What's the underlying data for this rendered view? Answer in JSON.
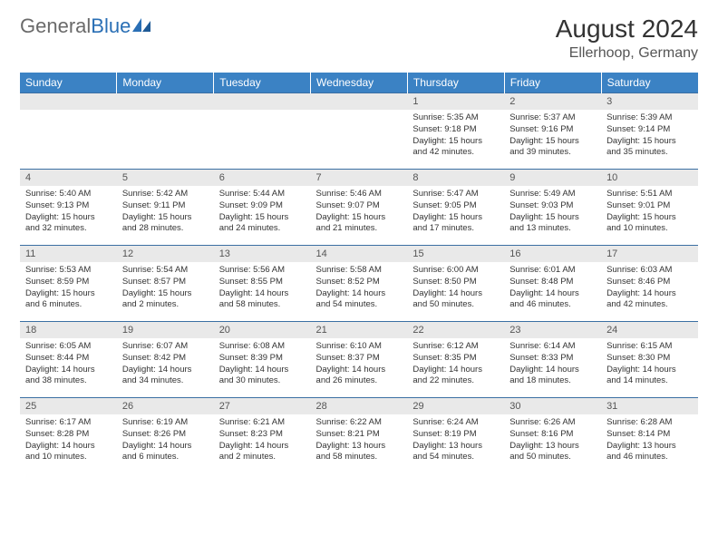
{
  "brand": {
    "part1": "General",
    "part2": "Blue"
  },
  "title": "August 2024",
  "location": "Ellerhoop, Germany",
  "colors": {
    "header_bg": "#3b82c4",
    "header_text": "#ffffff",
    "row_divider": "#3b6fa3",
    "daynum_bg": "#e9e9e9",
    "text": "#333333",
    "brand_gray": "#6a6a6a",
    "brand_blue": "#2a6fb5"
  },
  "weekdays": [
    "Sunday",
    "Monday",
    "Tuesday",
    "Wednesday",
    "Thursday",
    "Friday",
    "Saturday"
  ],
  "weeks": [
    [
      null,
      null,
      null,
      null,
      {
        "n": "1",
        "sr": "5:35 AM",
        "ss": "9:18 PM",
        "dl": "15 hours and 42 minutes."
      },
      {
        "n": "2",
        "sr": "5:37 AM",
        "ss": "9:16 PM",
        "dl": "15 hours and 39 minutes."
      },
      {
        "n": "3",
        "sr": "5:39 AM",
        "ss": "9:14 PM",
        "dl": "15 hours and 35 minutes."
      }
    ],
    [
      {
        "n": "4",
        "sr": "5:40 AM",
        "ss": "9:13 PM",
        "dl": "15 hours and 32 minutes."
      },
      {
        "n": "5",
        "sr": "5:42 AM",
        "ss": "9:11 PM",
        "dl": "15 hours and 28 minutes."
      },
      {
        "n": "6",
        "sr": "5:44 AM",
        "ss": "9:09 PM",
        "dl": "15 hours and 24 minutes."
      },
      {
        "n": "7",
        "sr": "5:46 AM",
        "ss": "9:07 PM",
        "dl": "15 hours and 21 minutes."
      },
      {
        "n": "8",
        "sr": "5:47 AM",
        "ss": "9:05 PM",
        "dl": "15 hours and 17 minutes."
      },
      {
        "n": "9",
        "sr": "5:49 AM",
        "ss": "9:03 PM",
        "dl": "15 hours and 13 minutes."
      },
      {
        "n": "10",
        "sr": "5:51 AM",
        "ss": "9:01 PM",
        "dl": "15 hours and 10 minutes."
      }
    ],
    [
      {
        "n": "11",
        "sr": "5:53 AM",
        "ss": "8:59 PM",
        "dl": "15 hours and 6 minutes."
      },
      {
        "n": "12",
        "sr": "5:54 AM",
        "ss": "8:57 PM",
        "dl": "15 hours and 2 minutes."
      },
      {
        "n": "13",
        "sr": "5:56 AM",
        "ss": "8:55 PM",
        "dl": "14 hours and 58 minutes."
      },
      {
        "n": "14",
        "sr": "5:58 AM",
        "ss": "8:52 PM",
        "dl": "14 hours and 54 minutes."
      },
      {
        "n": "15",
        "sr": "6:00 AM",
        "ss": "8:50 PM",
        "dl": "14 hours and 50 minutes."
      },
      {
        "n": "16",
        "sr": "6:01 AM",
        "ss": "8:48 PM",
        "dl": "14 hours and 46 minutes."
      },
      {
        "n": "17",
        "sr": "6:03 AM",
        "ss": "8:46 PM",
        "dl": "14 hours and 42 minutes."
      }
    ],
    [
      {
        "n": "18",
        "sr": "6:05 AM",
        "ss": "8:44 PM",
        "dl": "14 hours and 38 minutes."
      },
      {
        "n": "19",
        "sr": "6:07 AM",
        "ss": "8:42 PM",
        "dl": "14 hours and 34 minutes."
      },
      {
        "n": "20",
        "sr": "6:08 AM",
        "ss": "8:39 PM",
        "dl": "14 hours and 30 minutes."
      },
      {
        "n": "21",
        "sr": "6:10 AM",
        "ss": "8:37 PM",
        "dl": "14 hours and 26 minutes."
      },
      {
        "n": "22",
        "sr": "6:12 AM",
        "ss": "8:35 PM",
        "dl": "14 hours and 22 minutes."
      },
      {
        "n": "23",
        "sr": "6:14 AM",
        "ss": "8:33 PM",
        "dl": "14 hours and 18 minutes."
      },
      {
        "n": "24",
        "sr": "6:15 AM",
        "ss": "8:30 PM",
        "dl": "14 hours and 14 minutes."
      }
    ],
    [
      {
        "n": "25",
        "sr": "6:17 AM",
        "ss": "8:28 PM",
        "dl": "14 hours and 10 minutes."
      },
      {
        "n": "26",
        "sr": "6:19 AM",
        "ss": "8:26 PM",
        "dl": "14 hours and 6 minutes."
      },
      {
        "n": "27",
        "sr": "6:21 AM",
        "ss": "8:23 PM",
        "dl": "14 hours and 2 minutes."
      },
      {
        "n": "28",
        "sr": "6:22 AM",
        "ss": "8:21 PM",
        "dl": "13 hours and 58 minutes."
      },
      {
        "n": "29",
        "sr": "6:24 AM",
        "ss": "8:19 PM",
        "dl": "13 hours and 54 minutes."
      },
      {
        "n": "30",
        "sr": "6:26 AM",
        "ss": "8:16 PM",
        "dl": "13 hours and 50 minutes."
      },
      {
        "n": "31",
        "sr": "6:28 AM",
        "ss": "8:14 PM",
        "dl": "13 hours and 46 minutes."
      }
    ]
  ],
  "labels": {
    "sunrise": "Sunrise:",
    "sunset": "Sunset:",
    "daylight": "Daylight:"
  }
}
